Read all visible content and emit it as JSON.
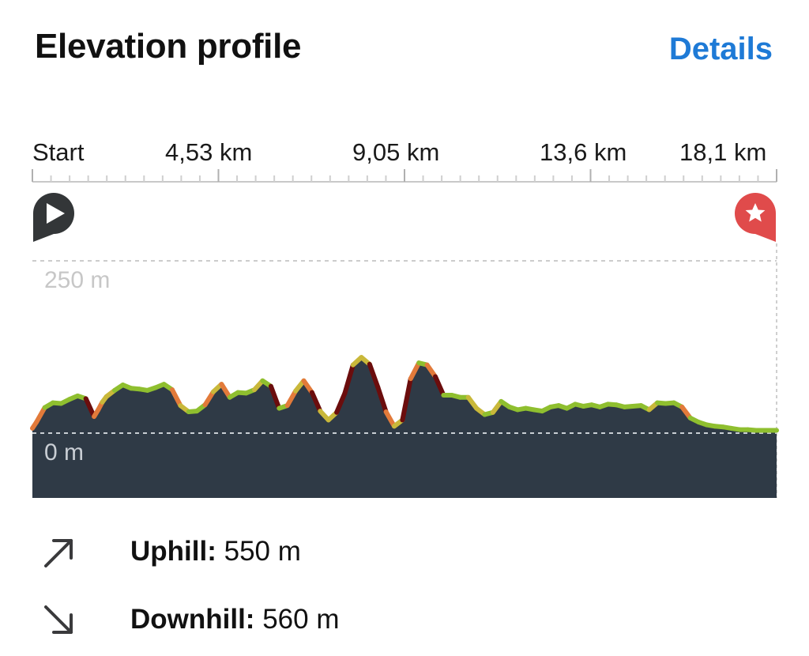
{
  "header": {
    "title": "Elevation profile",
    "details_label": "Details"
  },
  "distance_axis": {
    "labels": [
      "Start",
      "4,53 km",
      "9,05 km",
      "13,6 km",
      "18,1 km"
    ]
  },
  "markers": {
    "start_icon": "play-icon",
    "end_icon": "star-icon"
  },
  "chart_data": {
    "type": "area",
    "xlabel": "",
    "ylabel": "",
    "x_ticks": [
      "Start",
      "4,53 km",
      "9,05 km",
      "13,6 km",
      "18,1 km"
    ],
    "y_ticks": [
      "250 m",
      "0 m"
    ],
    "xlim": [
      0,
      18.1
    ],
    "ylim": [
      0,
      250
    ],
    "grid": false,
    "colors": {
      "fill": "#2f3a46",
      "flat": "#8fbf2f",
      "moderate": "#c9b83a",
      "steep": "#e27a3a",
      "very_steep": "#6b0d0d",
      "top_line": "#cccccc"
    },
    "series": [
      {
        "x": [
          0.0,
          0.1,
          0.3,
          0.5,
          0.7,
          0.9,
          1.1,
          1.3,
          1.5,
          1.6,
          1.7,
          1.8,
          2.0,
          2.2,
          2.4,
          2.6,
          2.8,
          3.0,
          3.2,
          3.4,
          3.6,
          3.8,
          4.0,
          4.2,
          4.4,
          4.6,
          4.8,
          5.0,
          5.2,
          5.4,
          5.6,
          5.8,
          6.0,
          6.2,
          6.4,
          6.6,
          6.8,
          7.0,
          7.2,
          7.4,
          7.6,
          7.8,
          8.0,
          8.2,
          8.4,
          8.6,
          8.8,
          9.0,
          9.2,
          9.4,
          9.6,
          9.8,
          10.0,
          10.2,
          10.4,
          10.6,
          10.8,
          11.0,
          11.2,
          11.4,
          11.6,
          11.8,
          12.0,
          12.2,
          12.4,
          12.6,
          12.8,
          13.0,
          13.2,
          13.4,
          13.6,
          13.8,
          14.0,
          14.2,
          14.4,
          14.6,
          14.8,
          15.0,
          15.2,
          15.4,
          15.6,
          15.8,
          16.0,
          16.2,
          16.4,
          16.6,
          16.8,
          17.0,
          17.2,
          17.4,
          17.6,
          17.8,
          18.1
        ],
        "y": [
          7,
          16,
          37,
          44,
          43,
          49,
          54,
          50,
          24,
          34,
          45,
          53,
          62,
          70,
          65,
          64,
          62,
          66,
          71,
          63,
          40,
          31,
          32,
          41,
          60,
          71,
          52,
          59,
          58,
          63,
          76,
          68,
          36,
          40,
          61,
          76,
          59,
          32,
          19,
          30,
          58,
          99,
          110,
          100,
          67,
          31,
          10,
          19,
          79,
          102,
          99,
          82,
          55,
          55,
          52,
          52,
          36,
          27,
          30,
          46,
          38,
          34,
          36,
          34,
          32,
          38,
          40,
          36,
          42,
          39,
          41,
          38,
          42,
          41,
          38,
          39,
          40,
          34,
          44,
          43,
          44,
          38,
          22,
          16,
          12,
          10,
          9,
          7,
          5,
          5,
          4,
          4,
          4
        ]
      }
    ]
  },
  "stats": {
    "uphill": {
      "icon": "arrow-up-right-icon",
      "label": "Uphill:",
      "value": "550 m"
    },
    "downhill": {
      "icon": "arrow-down-right-icon",
      "label": "Downhill:",
      "value": "560 m"
    }
  }
}
